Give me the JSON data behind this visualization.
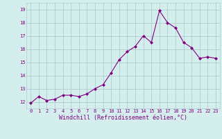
{
  "x": [
    0,
    1,
    2,
    3,
    4,
    5,
    6,
    7,
    8,
    9,
    10,
    11,
    12,
    13,
    14,
    15,
    16,
    17,
    18,
    19,
    20,
    21,
    22,
    23
  ],
  "y": [
    11.9,
    12.4,
    12.1,
    12.2,
    12.5,
    12.5,
    12.4,
    12.6,
    13.0,
    13.3,
    14.2,
    15.2,
    15.8,
    16.2,
    17.0,
    16.5,
    18.9,
    18.0,
    17.6,
    16.5,
    16.1,
    15.3,
    15.4,
    15.3
  ],
  "line_color": "#800080",
  "marker": "D",
  "marker_size": 2.0,
  "bg_color": "#d4eeee",
  "grid_color": "#b0cccc",
  "xlabel": "Windchill (Refroidissement éolien,°C)",
  "xlabel_color": "#800080",
  "tick_color": "#800080",
  "ylim": [
    11.5,
    19.5
  ],
  "yticks": [
    12,
    13,
    14,
    15,
    16,
    17,
    18,
    19
  ],
  "xticks": [
    0,
    1,
    2,
    3,
    4,
    5,
    6,
    7,
    8,
    9,
    10,
    11,
    12,
    13,
    14,
    15,
    16,
    17,
    18,
    19,
    20,
    21,
    22,
    23
  ],
  "tick_fontsize": 5.0,
  "xlabel_fontsize": 6.0,
  "linewidth": 0.8
}
